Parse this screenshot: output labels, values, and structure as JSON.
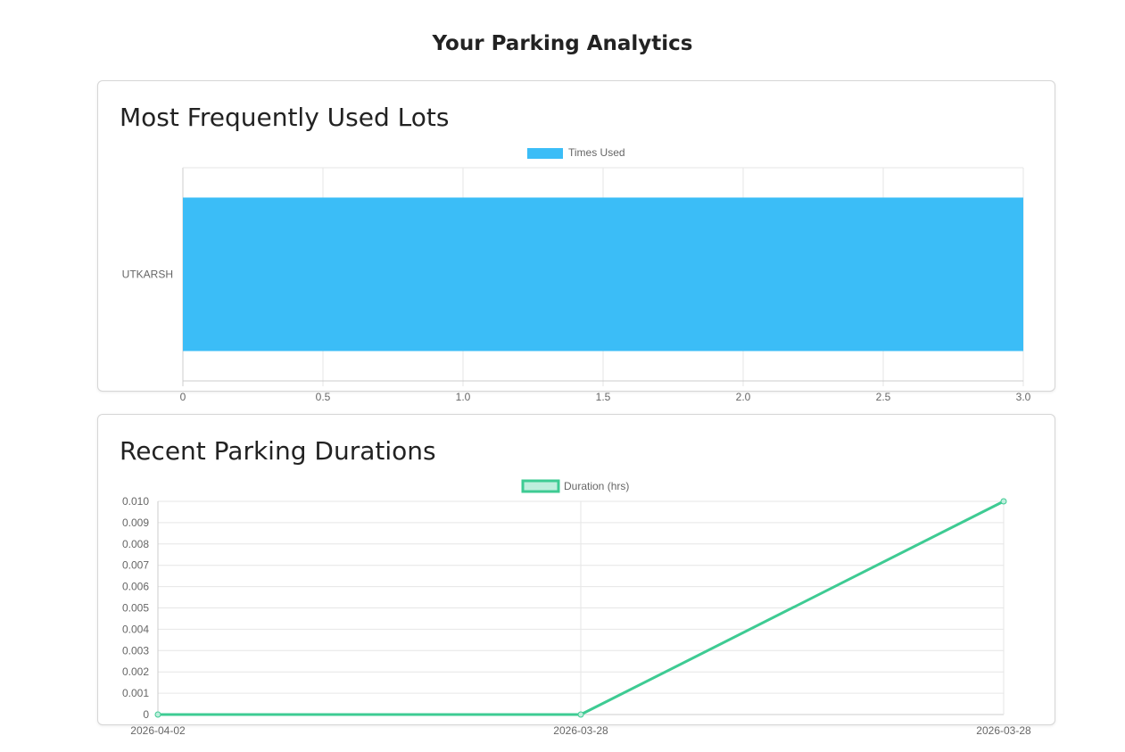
{
  "page": {
    "title": "Your Parking Analytics"
  },
  "colors": {
    "bar": "#3bbdf7",
    "line": "#3ecb93",
    "line_fill": "#bfeedd",
    "grid": "#e6e6e6",
    "axis": "#cccccc",
    "text": "#666666"
  },
  "chart_data": [
    {
      "type": "bar",
      "orientation": "horizontal",
      "title": "Most Frequently Used Lots",
      "categories": [
        "UTKARSH"
      ],
      "series": [
        {
          "name": "Times Used",
          "values": [
            3
          ]
        }
      ],
      "xlim": [
        0,
        3.0
      ],
      "xticks": [
        "0",
        "0.5",
        "1.0",
        "1.5",
        "2.0",
        "2.5",
        "3.0"
      ],
      "grid": true,
      "legend": "top-center"
    },
    {
      "type": "line",
      "title": "Recent Parking Durations",
      "categories": [
        "2026-04-02",
        "2026-03-28",
        "2026-03-28"
      ],
      "series": [
        {
          "name": "Duration (hrs)",
          "values": [
            0,
            0,
            0.01
          ]
        }
      ],
      "ylim": [
        0,
        0.01
      ],
      "yticks": [
        "0",
        "0.001",
        "0.002",
        "0.003",
        "0.004",
        "0.005",
        "0.006",
        "0.007",
        "0.008",
        "0.009",
        "0.010"
      ],
      "grid": true,
      "legend": "top-center"
    }
  ]
}
